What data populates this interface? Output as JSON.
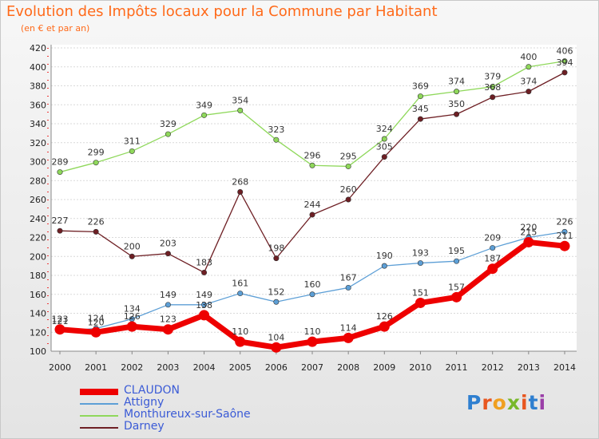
{
  "chart_data": {
    "type": "line",
    "title": "Evolution des Impôts locaux pour la Commune par Habitant",
    "subtitle": "(en € et par an)",
    "x": [
      "2000",
      "2001",
      "2002",
      "2003",
      "2004",
      "2005",
      "2006",
      "2007",
      "2008",
      "2009",
      "2010",
      "2011",
      "2012",
      "2013",
      "2014"
    ],
    "yticks": [
      100,
      120,
      140,
      160,
      180,
      200,
      220,
      240,
      260,
      280,
      300,
      320,
      340,
      360,
      380,
      400,
      420
    ],
    "ylim": [
      100,
      420
    ],
    "grid": "horizontal",
    "legend_position": "bottom-left",
    "series": [
      {
        "name": "CLAUDON",
        "color": "#ee0000",
        "values": [
          123,
          120,
          126,
          123,
          138,
          110,
          104,
          110,
          114,
          126,
          151,
          157,
          187,
          215,
          211
        ]
      },
      {
        "name": "Attigny",
        "color": "#5d9fd6",
        "values": [
          121,
          124,
          134,
          149,
          149,
          161,
          152,
          160,
          167,
          190,
          193,
          195,
          209,
          220,
          226
        ]
      },
      {
        "name": "Monthureux-sur-Saône",
        "color": "#8fd85b",
        "values": [
          289,
          299,
          311,
          329,
          349,
          354,
          323,
          296,
          295,
          324,
          369,
          374,
          379,
          400,
          406
        ]
      },
      {
        "name": "Darney",
        "color": "#6e1f24",
        "values": [
          227,
          226,
          200,
          203,
          183,
          268,
          198,
          244,
          260,
          305,
          345,
          350,
          368,
          374,
          394
        ]
      }
    ]
  },
  "logo": {
    "text": "Proxiti"
  }
}
